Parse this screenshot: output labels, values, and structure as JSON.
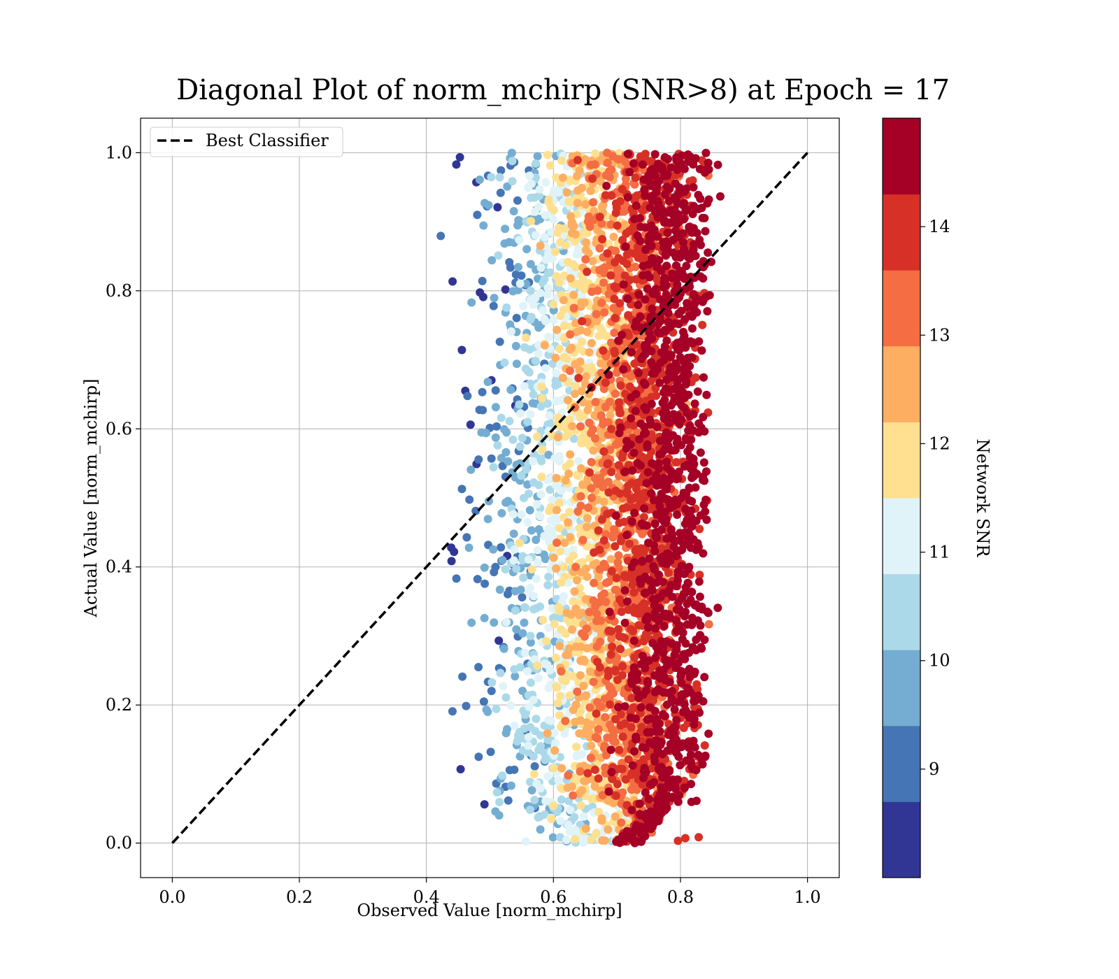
{
  "chart_data": {
    "type": "scatter",
    "title": "Diagonal Plot of norm_mchirp (SNR>8) at Epoch = 17",
    "xlabel": "Observed Value [norm_mchirp]",
    "ylabel": "Actual Value [norm_mchirp]",
    "xlim": [
      -0.05,
      1.05
    ],
    "ylim": [
      -0.05,
      1.05
    ],
    "x_ticks": [
      "0.0",
      "0.2",
      "0.4",
      "0.6",
      "0.8",
      "1.0"
    ],
    "y_ticks": [
      "0.0",
      "0.2",
      "0.4",
      "0.6",
      "0.8",
      "1.0"
    ],
    "grid": true,
    "legend": {
      "position": "upper-left",
      "entries": [
        "Best Classifier"
      ]
    },
    "reference_line": {
      "name": "Best Classifier",
      "style": "dashed",
      "color": "#000000",
      "x": [
        0.0,
        1.0
      ],
      "y": [
        0.0,
        1.0
      ]
    },
    "scatter_description": {
      "x_range_observed": [
        0.41,
        0.89
      ],
      "y_range_observed": [
        0.0,
        1.0
      ],
      "dense_core_x_range": [
        0.6,
        0.82
      ],
      "color_variable": "Network SNR"
    },
    "colorbar": {
      "label": "Network SNR",
      "ticks": [
        "9",
        "10",
        "11",
        "12",
        "13",
        "14"
      ],
      "tick_values": [
        9,
        10,
        11,
        12,
        13,
        14
      ],
      "range": [
        8.0,
        15.0
      ],
      "levels": [
        8.0,
        8.7,
        9.4,
        10.1,
        10.8,
        11.5,
        12.2,
        12.9,
        13.6,
        14.3,
        15.0
      ],
      "colors": [
        "#313695",
        "#4575b4",
        "#74add1",
        "#abd9e9",
        "#e0f3f8",
        "#fee090",
        "#fdae61",
        "#f46d43",
        "#d73027",
        "#a50026"
      ]
    }
  }
}
